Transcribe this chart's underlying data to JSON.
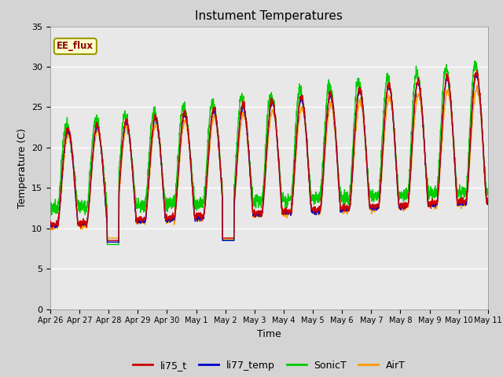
{
  "title": "Instument Temperatures",
  "xlabel": "Time",
  "ylabel": "Temperature (C)",
  "ylim": [
    0,
    35
  ],
  "annotation": "EE_flux",
  "fig_facecolor": "#d4d4d4",
  "plot_facecolor": "#e8e8e8",
  "series_colors": {
    "li75_t": "#cc0000",
    "li77_temp": "#0000cc",
    "SonicT": "#00cc00",
    "AirT": "#ff9900"
  },
  "xtick_labels": [
    "Apr 26",
    "Apr 27",
    "Apr 28",
    "Apr 29",
    "Apr 30",
    "May 1",
    "May 2",
    "May 3",
    "May 4",
    "May 5",
    "May 6",
    "May 7",
    "May 8",
    "May 9",
    "May 10",
    "May 11"
  ],
  "ytick_labels": [
    0,
    5,
    10,
    15,
    20,
    25,
    30,
    35
  ],
  "linewidth": 1.0,
  "n_days": 15,
  "pts_per_day": 144
}
